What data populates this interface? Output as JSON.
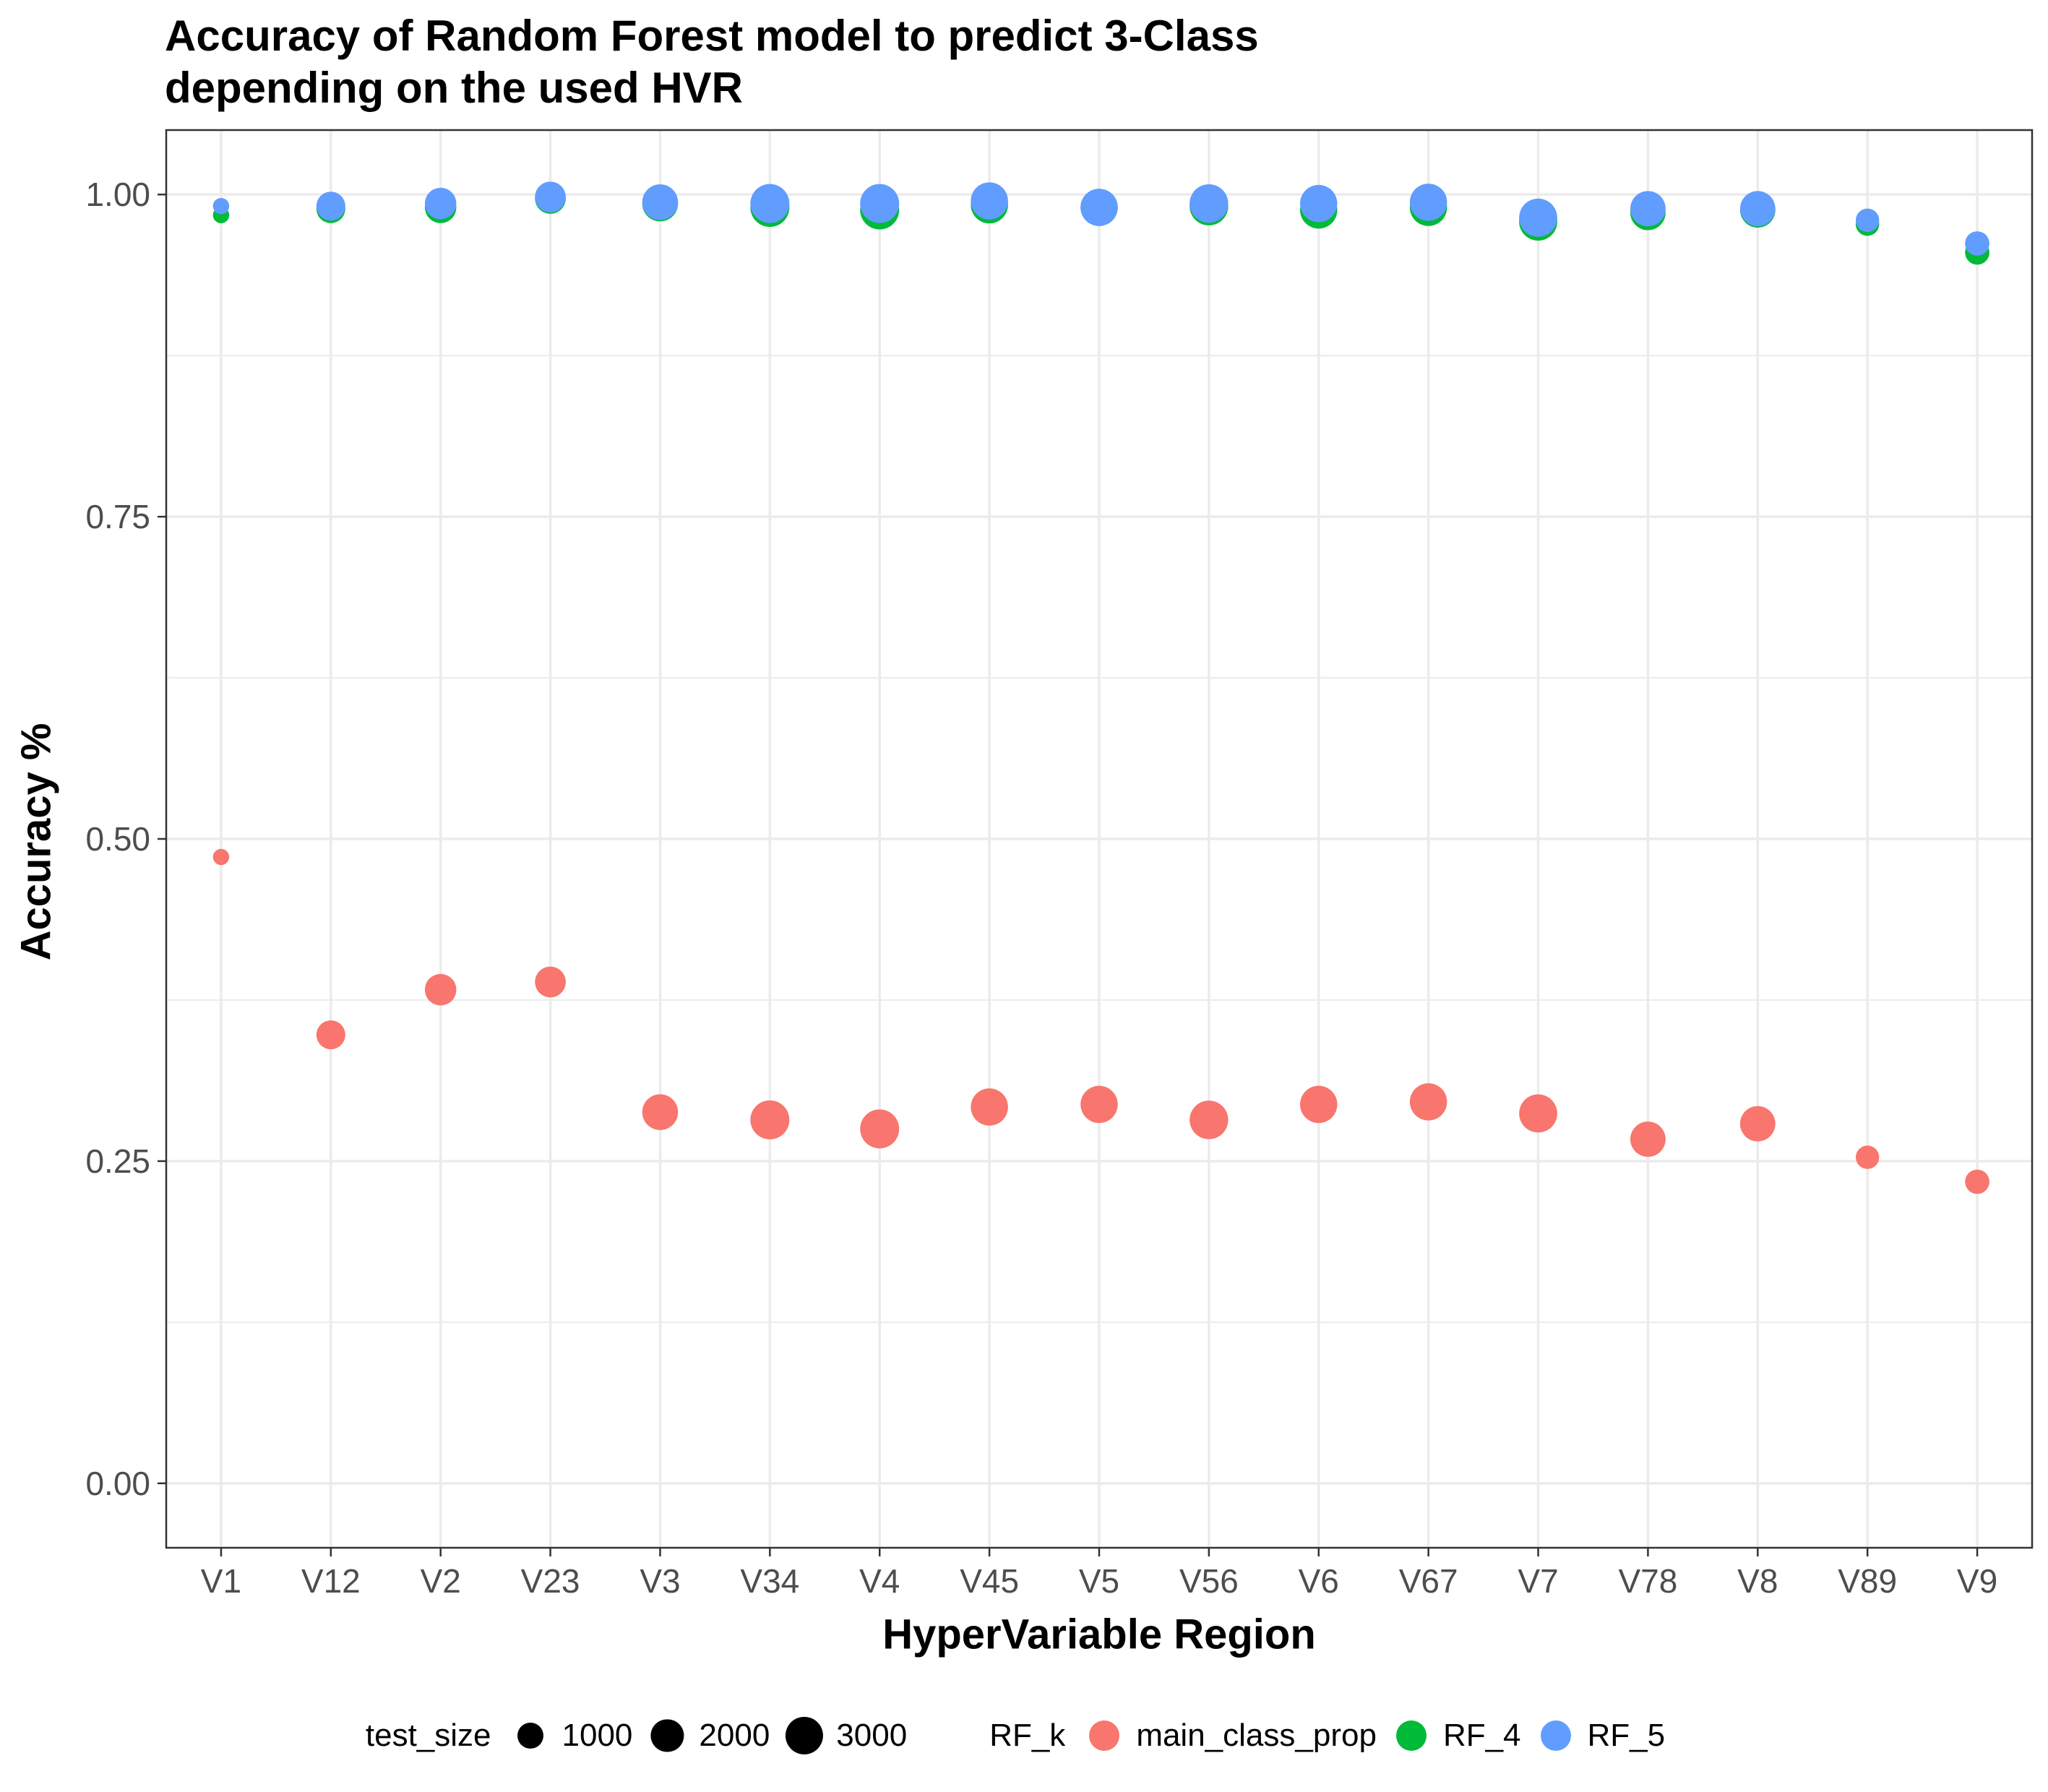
{
  "chart_data": {
    "type": "scatter",
    "title_lines": [
      "Accuracy of Random Forest model to predict 3-Class",
      "depending on the used HVR"
    ],
    "xlabel": "HyperVariable Region",
    "ylabel": "Accuracy %",
    "categories": [
      "V1",
      "V12",
      "V2",
      "V23",
      "V3",
      "V34",
      "V4",
      "V45",
      "V5",
      "V56",
      "V6",
      "V67",
      "V7",
      "V78",
      "V8",
      "V89",
      "V9"
    ],
    "ylim": [
      -0.05,
      1.05
    ],
    "yticks": [
      0.0,
      0.25,
      0.5,
      0.75,
      1.0
    ],
    "ytick_labels": [
      "0.00",
      "0.25",
      "0.50",
      "0.75",
      "1.00"
    ],
    "grid": true,
    "legend_position": "bottom",
    "size_legend": {
      "title": "test_size",
      "entries": [
        {
          "label": "1000",
          "value": 1000
        },
        {
          "label": "2000",
          "value": 2000
        },
        {
          "label": "3000",
          "value": 3000
        }
      ]
    },
    "color_legend": {
      "title": "RF_k"
    },
    "test_size": [
      150,
      1400,
      1800,
      1700,
      2600,
      3300,
      3300,
      2900,
      2900,
      3200,
      2900,
      2900,
      3100,
      2500,
      2500,
      700,
      800
    ],
    "series": [
      {
        "name": "main_class_prop",
        "color": "#F8766D",
        "values": [
          0.486,
          0.348,
          0.383,
          0.389,
          0.288,
          0.282,
          0.275,
          0.292,
          0.294,
          0.282,
          0.294,
          0.296,
          0.287,
          0.267,
          0.279,
          0.253,
          0.234
        ]
      },
      {
        "name": "RF_4",
        "color": "#00BA38",
        "values": [
          0.984,
          0.989,
          0.99,
          0.997,
          0.993,
          0.99,
          0.988,
          0.992,
          0.99,
          0.991,
          0.988,
          0.99,
          0.979,
          0.986,
          0.988,
          0.977,
          0.955
        ]
      },
      {
        "name": "RF_5",
        "color": "#619CFF",
        "values": [
          0.991,
          0.991,
          0.993,
          0.998,
          0.994,
          0.993,
          0.993,
          0.995,
          0.99,
          0.993,
          0.993,
          0.994,
          0.982,
          0.989,
          0.989,
          0.98,
          0.962
        ]
      }
    ]
  }
}
